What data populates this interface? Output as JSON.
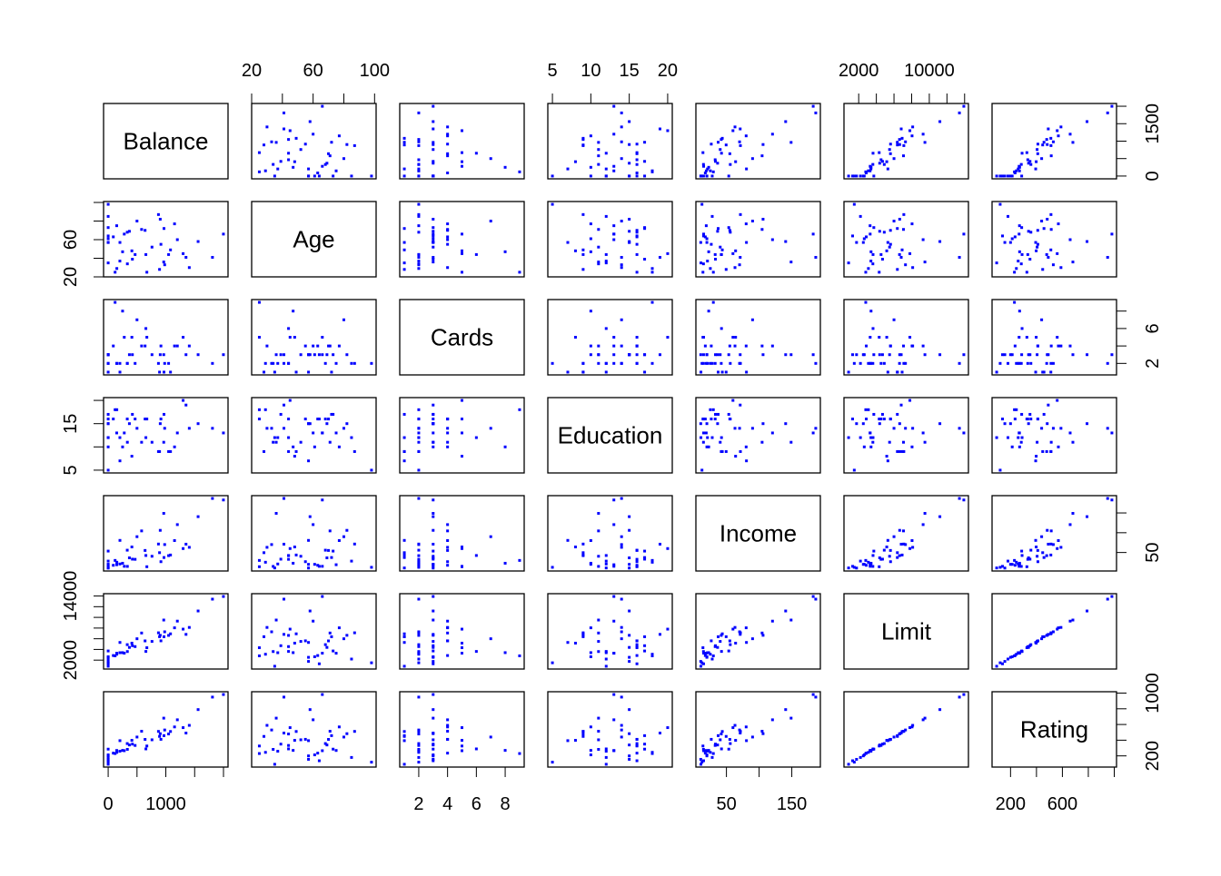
{
  "chart_data": {
    "type": "scatter",
    "subtype": "scatterplot-matrix",
    "title": "",
    "grid": false,
    "point_color": "#0000FF",
    "variables": [
      "Balance",
      "Age",
      "Cards",
      "Education",
      "Income",
      "Limit",
      "Rating"
    ],
    "ranges": {
      "Balance": [
        0,
        1999
      ],
      "Age": [
        23,
        98
      ],
      "Cards": [
        1,
        9
      ],
      "Education": [
        5,
        20
      ],
      "Income": [
        10.35,
        186.63
      ],
      "Limit": [
        855,
        13913
      ],
      "Rating": [
        93,
        982
      ]
    },
    "axes": {
      "Balance": {
        "side_outer": "bottom",
        "side_inner": "right",
        "ticks": [
          0,
          500,
          1000,
          1500,
          2000
        ],
        "bottom_labels": [
          "0",
          "1000"
        ],
        "right_labels": [
          "0",
          "1500"
        ]
      },
      "Age": {
        "side_outer": "top",
        "side_inner": "left",
        "ticks": [
          20,
          40,
          60,
          80,
          100
        ],
        "top_labels": [
          "20",
          "60",
          "100"
        ],
        "left_labels": [
          "20",
          "60"
        ]
      },
      "Cards": {
        "side_outer": "bottom",
        "side_inner": "right",
        "ticks": [
          2,
          4,
          6,
          8
        ],
        "bottom_labels": [
          "2",
          "4",
          "6",
          "8"
        ],
        "right_labels": [
          "2",
          "6"
        ]
      },
      "Education": {
        "side_outer": "top",
        "side_inner": "left",
        "ticks": [
          5,
          10,
          15,
          20
        ],
        "top_labels": [
          "5",
          "10",
          "15",
          "20"
        ],
        "left_labels": [
          "5",
          "15"
        ]
      },
      "Income": {
        "side_outer": "bottom",
        "side_inner": "right",
        "ticks": [
          50,
          100,
          150
        ],
        "bottom_labels": [
          "50",
          "150"
        ],
        "right_labels": [
          "50"
        ]
      },
      "Limit": {
        "side_outer": "top",
        "side_inner": "left",
        "ticks": [
          2000,
          4000,
          6000,
          8000,
          10000,
          12000,
          14000
        ],
        "top_labels": [
          "2000",
          "10000"
        ],
        "left_labels": [
          "2000",
          "14000"
        ]
      },
      "Rating": {
        "side_outer": "bottom",
        "side_inner": "right",
        "ticks": [
          200,
          400,
          600,
          800,
          1000
        ],
        "bottom_labels": [
          "200",
          "600"
        ],
        "right_labels": [
          "200",
          "1000"
        ]
      }
    },
    "observations": [
      [
        333,
        34,
        2,
        11,
        14.891,
        3606,
        283
      ],
      [
        903,
        82,
        3,
        15,
        106.025,
        6645,
        483
      ],
      [
        580,
        71,
        4,
        11,
        104.593,
        7075,
        514
      ],
      [
        964,
        36,
        3,
        11,
        148.924,
        9504,
        681
      ],
      [
        331,
        68,
        2,
        16,
        55.882,
        4897,
        357
      ],
      [
        1151,
        77,
        4,
        10,
        80.18,
        8047,
        569
      ],
      [
        203,
        37,
        2,
        12,
        20.996,
        3388,
        259
      ],
      [
        872,
        87,
        2,
        9,
        71.408,
        7114,
        512
      ],
      [
        279,
        66,
        5,
        13,
        15.125,
        3300,
        266
      ],
      [
        1350,
        41,
        3,
        19,
        71.061,
        6819,
        491
      ],
      [
        1407,
        30,
        4,
        14,
        63.095,
        8117,
        589
      ],
      [
        0,
        64,
        3,
        16,
        15.045,
        1311,
        138
      ],
      [
        204,
        57,
        1,
        7,
        80.616,
        5308,
        394
      ],
      [
        1081,
        49,
        1,
        9,
        43.682,
        6922,
        511
      ],
      [
        148,
        75,
        2,
        13,
        19.144,
        3291,
        269
      ],
      [
        0,
        57,
        3,
        15,
        20.089,
        2525,
        200
      ],
      [
        0,
        73,
        3,
        17,
        53.598,
        3714,
        286
      ],
      [
        368,
        69,
        3,
        15,
        36.496,
        4378,
        339
      ],
      [
        891,
        28,
        1,
        9,
        49.57,
        6384,
        448
      ],
      [
        1048,
        44,
        2,
        9,
        42.079,
        6626,
        479
      ],
      [
        89,
        63,
        4,
        16,
        17.7,
        2860,
        235
      ],
      [
        968,
        72,
        1,
        17,
        37.348,
        6378,
        458
      ],
      [
        0,
        61,
        3,
        10,
        20.103,
        2631,
        213
      ],
      [
        411,
        48,
        5,
        8,
        64.027,
        5179,
        398
      ],
      [
        0,
        57,
        3,
        15,
        10.742,
        1757,
        156
      ],
      [
        671,
        25,
        5,
        16,
        14.09,
        4323,
        326
      ],
      [
        654,
        44,
        6,
        12,
        42.471,
        3625,
        289
      ],
      [
        467,
        44,
        2,
        16,
        32.793,
        4534,
        333
      ],
      [
        1809,
        41,
        2,
        14,
        186.634,
        13414,
        949
      ],
      [
        915,
        55,
        4,
        16,
        26.813,
        5611,
        411
      ],
      [
        1999,
        66,
        3,
        13,
        182.728,
        13913,
        982
      ],
      [
        0,
        98,
        2,
        5,
        12.6,
        1500,
        120
      ],
      [
        120,
        25,
        9,
        18,
        30.0,
        2800,
        230
      ],
      [
        1300,
        45,
        5,
        20,
        60.0,
        7800,
        560
      ],
      [
        0,
        35,
        1,
        12,
        11.0,
        855,
        93
      ],
      [
        500,
        80,
        7,
        14,
        90.0,
        6000,
        440
      ],
      [
        760,
        52,
        3,
        11,
        40.5,
        5500,
        405
      ],
      [
        150,
        29,
        2,
        18,
        25.4,
        3100,
        245
      ],
      [
        1200,
        60,
        4,
        13,
        120.5,
        9300,
        660
      ],
      [
        420,
        39,
        3,
        17,
        33.2,
        4700,
        350
      ],
      [
        0,
        85,
        2,
        12,
        28.3,
        2200,
        180
      ],
      [
        980,
        33,
        2,
        14,
        70.1,
        7300,
        530
      ],
      [
        1560,
        58,
        3,
        15,
        140.6,
        11200,
        790
      ],
      [
        250,
        47,
        8,
        10,
        22.9,
        3400,
        270
      ],
      [
        640,
        70,
        4,
        16,
        55.2,
        5600,
        410
      ]
    ]
  }
}
